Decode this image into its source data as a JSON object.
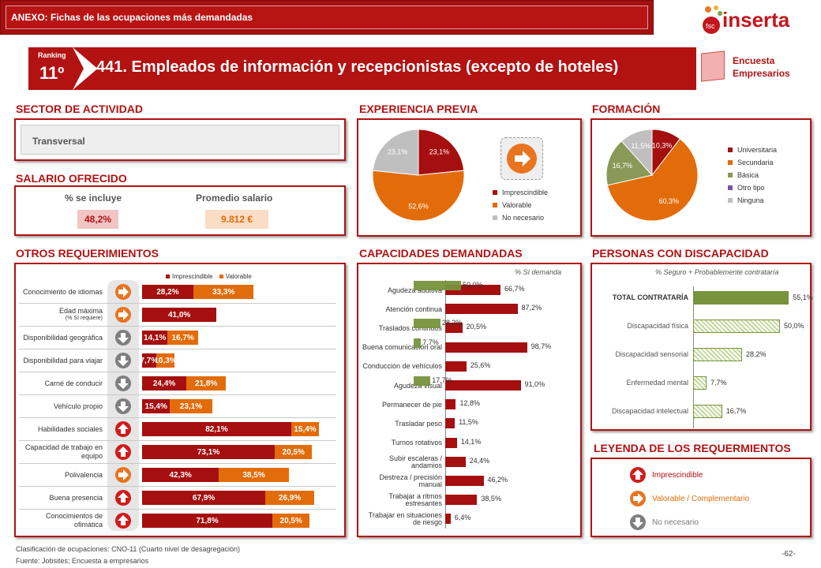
{
  "header": {
    "annex": "ANEXO: Fichas de las ocupaciones más demandadas",
    "logo_small": "fsc",
    "logo": "inserta"
  },
  "ranking": {
    "label": "Ranking",
    "value": "11º"
  },
  "title": "441. Empleados de información y recepcionistas (excepto de hoteles)",
  "survey_badge": {
    "line1": "Encuesta",
    "line2": "Empresarios"
  },
  "sections": {
    "sector": "SECTOR DE ACTIVIDAD",
    "experiencia": "EXPERIENCIA PREVIA",
    "formacion": "FORMACIÓN",
    "salario": "SALARIO OFRECIDO",
    "otros": "OTROS REQUERIMIENTOS",
    "capacidades": "CAPACIDADES DEMANDADAS",
    "discapacidad": "PERSONAS CON DISCAPACIDAD",
    "leyenda": "LEYENDA DE LOS REQUERMIENTOS"
  },
  "sector_value": "Transversal",
  "salario": {
    "col1": "% se incluye",
    "col2": "Promedio salario",
    "val1": "48,2%",
    "val2": "9.812 €"
  },
  "chart_data": [
    {
      "type": "pie",
      "id": "experiencia",
      "labels": [
        "Imprescindible",
        "Valorable",
        "No necesario"
      ],
      "values": [
        23.1,
        52.6,
        23.1
      ],
      "data_labels": [
        "23,1%",
        "52,6%",
        "23,1%"
      ],
      "colors": [
        "#a50f0f",
        "#e36c0a",
        "#bfbfbf"
      ]
    },
    {
      "type": "pie",
      "id": "formacion",
      "labels": [
        "Universitaria",
        "Secundaria",
        "Básica",
        "Otro tipo",
        "Ninguna"
      ],
      "values": [
        10.3,
        60.3,
        16.7,
        0,
        11.5
      ],
      "data_labels": [
        "10,3%",
        "60,3%",
        "16,7%",
        "",
        "11,5%"
      ],
      "colors": [
        "#a50f0f",
        "#e36c0a",
        "#8b9958",
        "#7b52a0",
        "#bfbfbf"
      ]
    },
    {
      "type": "bar",
      "id": "otros",
      "orientation": "horizontal",
      "stacked": true,
      "legend": [
        "Imprescindible",
        "Valorable"
      ],
      "categories": [
        {
          "name": "Conocimiento de idiomas",
          "sub": "",
          "icon": "valorable",
          "imp": 28.2,
          "val": 33.3,
          "imp_l": "28,2%",
          "val_l": "33,3%"
        },
        {
          "name": "Edad máxima",
          "sub": "(% Sí requiere)",
          "icon": "valorable",
          "imp": 41.0,
          "val": 0,
          "imp_l": "41,0%",
          "val_l": ""
        },
        {
          "name": "Disponibilidad geográfica",
          "sub": "",
          "icon": "no",
          "imp": 14.1,
          "val": 16.7,
          "imp_l": "14,1%",
          "val_l": "16,7%"
        },
        {
          "name": "Disponibilidad para viajar",
          "sub": "",
          "icon": "no",
          "imp": 7.7,
          "val": 10.3,
          "imp_l": "7,7%",
          "val_l": "10,3%"
        },
        {
          "name": "Carné de conducir",
          "sub": "",
          "icon": "no",
          "imp": 24.4,
          "val": 21.8,
          "imp_l": "24,4%",
          "val_l": "21,8%"
        },
        {
          "name": "Vehículo propio",
          "sub": "",
          "icon": "no",
          "imp": 15.4,
          "val": 23.1,
          "imp_l": "15,4%",
          "val_l": "23,1%"
        },
        {
          "name": "Habilidades sociales",
          "sub": "",
          "icon": "imprescindible",
          "imp": 82.1,
          "val": 15.4,
          "imp_l": "82,1%",
          "val_l": "15,4%"
        },
        {
          "name": "Capacidad de trabajo en equipo",
          "sub": "",
          "icon": "imprescindible",
          "imp": 73.1,
          "val": 20.5,
          "imp_l": "73,1%",
          "val_l": "20,5%"
        },
        {
          "name": "Polivalencia",
          "sub": "",
          "icon": "valorable",
          "imp": 42.3,
          "val": 38.5,
          "imp_l": "42,3%",
          "val_l": "38,5%"
        },
        {
          "name": "Buena presencia",
          "sub": "",
          "icon": "imprescindible",
          "imp": 67.9,
          "val": 26.9,
          "imp_l": "67,9%",
          "val_l": "26,9%"
        },
        {
          "name": "Conocimientos de ofimática",
          "sub": "",
          "icon": "imprescindible",
          "imp": 71.8,
          "val": 20.5,
          "imp_l": "71,8%",
          "val_l": "20,5%"
        }
      ]
    },
    {
      "type": "bar",
      "id": "capacidades",
      "orientation": "horizontal",
      "note": "% Sí demanda",
      "categories": [
        "Agudeza auditiva",
        "Atención continua",
        "Traslados continuos",
        "Buena comunicación oral",
        "Conducción de vehículos",
        "Agudeza visual",
        "Permanecer de pie",
        "Trasladar peso",
        "Turnos rotativos",
        "Subir escaleras / andamios",
        "Destreza / precisión manual",
        "Trabajar a ritmos estresantes",
        "Trabajar en situaciones de riesgo"
      ],
      "values": [
        66.7,
        87.2,
        20.5,
        98.7,
        25.6,
        91.0,
        12.8,
        11.5,
        14.1,
        24.4,
        46.2,
        38.5,
        6.4
      ],
      "labels": [
        "66,7%",
        "87,2%",
        "20,5%",
        "98,7%",
        "25,6%",
        "91,0%",
        "12,8%",
        "11,5%",
        "14,1%",
        "24,4%",
        "46,2%",
        "38,5%",
        "6,4%"
      ],
      "green_values": [
        50.0,
        null,
        28.2,
        7.7,
        null,
        17.7,
        null,
        null,
        null,
        null,
        null,
        null,
        null
      ],
      "green_labels": [
        "50,0%",
        "",
        "28,2%",
        "7,7%",
        "",
        "17,7%",
        "",
        "",
        "",
        "",
        "",
        "",
        ""
      ]
    },
    {
      "type": "bar",
      "id": "discapacidad",
      "orientation": "horizontal",
      "note": "% Seguro + Probablemente contrataría",
      "categories": [
        "TOTAL CONTRATARÍA",
        "Discapacidad física",
        "Discapacidad sensorial",
        "Enfermedad mental",
        "Discapacidad intelectual"
      ],
      "values": [
        55.1,
        50.0,
        28.2,
        7.7,
        16.7
      ],
      "labels": [
        "55,1%",
        "50,0%",
        "28,2%",
        "7,7%",
        "16,7%"
      ]
    }
  ],
  "leyenda": {
    "imp": "Imprescindible",
    "val": "Valorable / Complementario",
    "no": "No necesario"
  },
  "footer": {
    "line1": "Clasificación de ocupaciones: CNO-11 (Cuarto nivel de desagregación)",
    "line2": "Fuente: Jobsites; Encuesta a empresarios",
    "page": "-62-"
  },
  "colors": {
    "red": "#a50f0f",
    "orange": "#e36c0a",
    "gray": "#bfbfbf",
    "green": "#77933c"
  }
}
